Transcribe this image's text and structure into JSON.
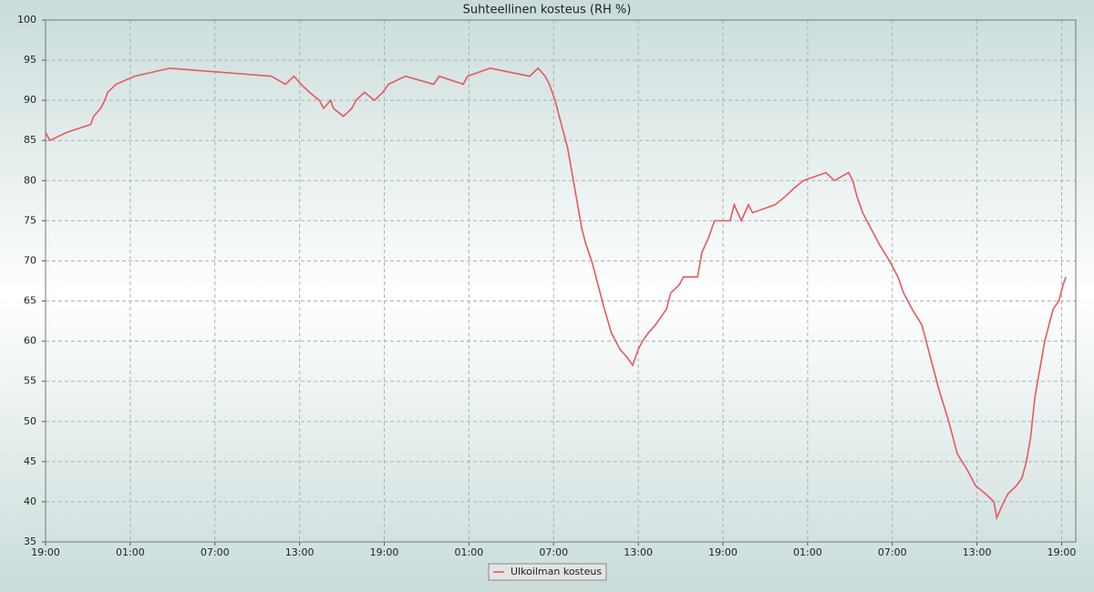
{
  "chart_data": {
    "type": "line",
    "title": "Suhteellinen kosteus (RH %)",
    "x": [
      0,
      0.3,
      1.5,
      3.2,
      3.4,
      3.9,
      4.2,
      4.4,
      5,
      6.3,
      8.8,
      16,
      17,
      17.6,
      18.1,
      18.7,
      19.4,
      19.7,
      20.2,
      20.4,
      21.1,
      21.7,
      22,
      22.6,
      23.3,
      23.9,
      24.3,
      25.5,
      27.5,
      27.9,
      29.6,
      29.9,
      31.5,
      34.3,
      34.9,
      35.4,
      35.7,
      36.1,
      36.4,
      36.7,
      37,
      37.4,
      37.7,
      38,
      38.3,
      38.7,
      39,
      39.3,
      39.6,
      40.1,
      40.7,
      41.2,
      41.6,
      42,
      42.3,
      42.7,
      43.2,
      43.6,
      44,
      44.3,
      44.9,
      45.2,
      46.2,
      46.5,
      47,
      47.4,
      48.5,
      48.8,
      49.3,
      49.8,
      50.1,
      51.7,
      52.4,
      53,
      53.7,
      55.3,
      55.9,
      56.9,
      57.2,
      57.5,
      57.9,
      58.5,
      59.1,
      59.8,
      60.4,
      60.8,
      61.4,
      62.1,
      62.7,
      63.3,
      64,
      64.6,
      65.3,
      65.9,
      66.6,
      67.2,
      67.4,
      67.9,
      68.2,
      68.8,
      69.2,
      69.5,
      69.8,
      70.1,
      70.5,
      70.8,
      71.1,
      71.4,
      71.8,
      72.1,
      72.3
    ],
    "series": [
      {
        "name": "Ulkoilman kosteus",
        "color": "#e8585c",
        "values": [
          86,
          85,
          86,
          87,
          88,
          89,
          90,
          91,
          92,
          93,
          94,
          93,
          92,
          93,
          92,
          91,
          90,
          89,
          90,
          89,
          88,
          89,
          90,
          91,
          90,
          91,
          92,
          93,
          92,
          93,
          92,
          93,
          94,
          93,
          94,
          93,
          92,
          90,
          88,
          86,
          84,
          80,
          77,
          74,
          72,
          70,
          68,
          66,
          64,
          61,
          59,
          58,
          57,
          59,
          60,
          61,
          62,
          63,
          64,
          66,
          67,
          68,
          68,
          71,
          73,
          75,
          75,
          77,
          75,
          77,
          76,
          77,
          78,
          79,
          80,
          81,
          80,
          81,
          80,
          78,
          76,
          74,
          72,
          70,
          68,
          66,
          64,
          62,
          58,
          54,
          50,
          46,
          44,
          42,
          41,
          40,
          38,
          40,
          41,
          42,
          43,
          45,
          48,
          53,
          57,
          60,
          62,
          64,
          65,
          67,
          68
        ]
      }
    ],
    "xlim": [
      0,
      73
    ],
    "xticks": [
      {
        "value": 0,
        "label": "19:00"
      },
      {
        "value": 6,
        "label": "01:00"
      },
      {
        "value": 12,
        "label": "07:00"
      },
      {
        "value": 18,
        "label": "13:00"
      },
      {
        "value": 24,
        "label": "19:00"
      },
      {
        "value": 30,
        "label": "01:00"
      },
      {
        "value": 36,
        "label": "07:00"
      },
      {
        "value": 42,
        "label": "13:00"
      },
      {
        "value": 48,
        "label": "19:00"
      },
      {
        "value": 54,
        "label": "01:00"
      },
      {
        "value": 60,
        "label": "07:00"
      },
      {
        "value": 66,
        "label": "13:00"
      },
      {
        "value": 72,
        "label": "19:00"
      }
    ],
    "ylim": [
      35,
      100
    ],
    "yticks": [
      35,
      40,
      45,
      50,
      55,
      60,
      65,
      70,
      75,
      80,
      85,
      90,
      95,
      100
    ],
    "grid": true
  }
}
